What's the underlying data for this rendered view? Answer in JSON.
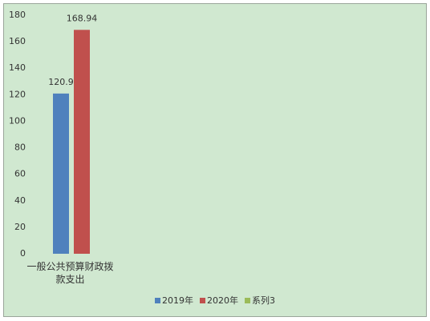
{
  "chart_data": {
    "type": "bar",
    "categories": [
      "一般公共预算财政拨款支出",
      null,
      null,
      null,
      null
    ],
    "series": [
      {
        "name": "2019年",
        "color": "#4f81bd",
        "values": [
          120.9,
          null,
          null,
          null,
          null
        ]
      },
      {
        "name": "2020年",
        "color": "#c0504d",
        "values": [
          168.94,
          null,
          null,
          null,
          null
        ]
      },
      {
        "name": "系列3",
        "color": "#9bbb59",
        "values": [
          null,
          null,
          null,
          null,
          null
        ]
      }
    ],
    "ylim": [
      0,
      180
    ],
    "yticks": [
      0,
      20,
      40,
      60,
      80,
      100,
      120,
      140,
      160,
      180
    ],
    "legend": "bottom"
  }
}
